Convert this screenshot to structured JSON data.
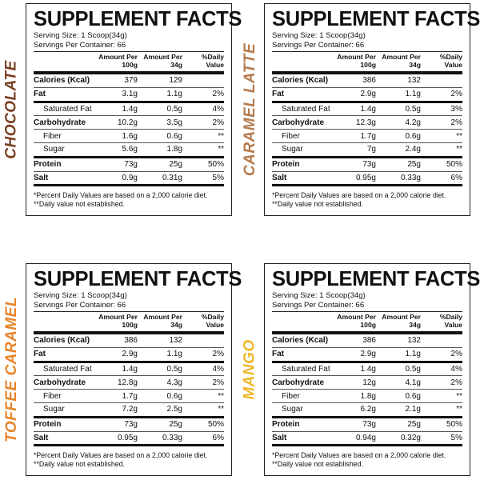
{
  "common": {
    "title": "SUPPLEMENT FACTS",
    "serving_size": "Serving Size: 1 Scoop(34g)",
    "servings_per_container": "Servings Per Container: 66",
    "headers": {
      "per100": "Amount Per 100g",
      "per34": "Amount Per 34g",
      "dv": "%Daily Value"
    },
    "footnote1": "*Percent Daily Values are based on a 2,000 calorie diet.",
    "footnote2": "**Daily value not established."
  },
  "panels": [
    {
      "flavor": "CHOCOLATE",
      "flavor_color": "#7a3f22",
      "rows": [
        {
          "label": "Calories (Kcal)",
          "per100": "379",
          "per34": "129",
          "dv": ""
        },
        {
          "label": "Fat",
          "per100": "3.1g",
          "per34": "1.1g",
          "dv": "2%"
        },
        {
          "label": "Saturated Fat",
          "per100": "1.4g",
          "per34": "0.5g",
          "dv": "4%"
        },
        {
          "label": "Carbohydrate",
          "per100": "10.2g",
          "per34": "3.5g",
          "dv": "2%"
        },
        {
          "label": "Fiber",
          "per100": "1.6g",
          "per34": "0.6g",
          "dv": "**"
        },
        {
          "label": "Sugar",
          "per100": "5.6g",
          "per34": "1.8g",
          "dv": "**"
        },
        {
          "label": "Protein",
          "per100": "73g",
          "per34": "25g",
          "dv": "50%"
        },
        {
          "label": "Salt",
          "per100": "0.9g",
          "per34": "0.31g",
          "dv": "5%"
        }
      ]
    },
    {
      "flavor": "CARAMEL LATTE",
      "flavor_color": "#b57a4c",
      "rows": [
        {
          "label": "Calories (Kcal)",
          "per100": "386",
          "per34": "132",
          "dv": ""
        },
        {
          "label": "Fat",
          "per100": "2.9g",
          "per34": "1.1g",
          "dv": "2%"
        },
        {
          "label": "Saturated Fat",
          "per100": "1.4g",
          "per34": "0.5g",
          "dv": "3%"
        },
        {
          "label": "Carbohydrate",
          "per100": "12.3g",
          "per34": "4.2g",
          "dv": "2%"
        },
        {
          "label": "Fiber",
          "per100": "1.7g",
          "per34": "0.6g",
          "dv": "**"
        },
        {
          "label": "Sugar",
          "per100": "7g",
          "per34": "2.4g",
          "dv": "**"
        },
        {
          "label": "Protein",
          "per100": "73g",
          "per34": "25g",
          "dv": "50%"
        },
        {
          "label": "Salt",
          "per100": "0.95g",
          "per34": "0.33g",
          "dv": "6%"
        }
      ]
    },
    {
      "flavor": "TOFFEE CARAMEL",
      "flavor_color": "#e8842a",
      "rows": [
        {
          "label": "Calories (Kcal)",
          "per100": "386",
          "per34": "132",
          "dv": ""
        },
        {
          "label": "Fat",
          "per100": "2.9g",
          "per34": "1.1g",
          "dv": "2%"
        },
        {
          "label": "Saturated Fat",
          "per100": "1.4g",
          "per34": "0.5g",
          "dv": "4%"
        },
        {
          "label": "Carbohydrate",
          "per100": "12.8g",
          "per34": "4.3g",
          "dv": "2%"
        },
        {
          "label": "Fiber",
          "per100": "1.7g",
          "per34": "0.6g",
          "dv": "**"
        },
        {
          "label": "Sugar",
          "per100": "7.2g",
          "per34": "2.5g",
          "dv": "**"
        },
        {
          "label": "Protein",
          "per100": "73g",
          "per34": "25g",
          "dv": "50%"
        },
        {
          "label": "Salt",
          "per100": "0.95g",
          "per34": "0.33g",
          "dv": "6%"
        }
      ]
    },
    {
      "flavor": "MANGO",
      "flavor_color": "#f0b726",
      "rows": [
        {
          "label": "Calories (Kcal)",
          "per100": "386",
          "per34": "132",
          "dv": ""
        },
        {
          "label": "Fat",
          "per100": "2.9g",
          "per34": "1.1g",
          "dv": "2%"
        },
        {
          "label": "Saturated Fat",
          "per100": "1.4g",
          "per34": "0.5g",
          "dv": "4%"
        },
        {
          "label": "Carbohydrate",
          "per100": "12g",
          "per34": "4.1g",
          "dv": "2%"
        },
        {
          "label": "Fiber",
          "per100": "1.8g",
          "per34": "0.6g",
          "dv": "**"
        },
        {
          "label": "Sugar",
          "per100": "6.2g",
          "per34": "2.1g",
          "dv": "**"
        },
        {
          "label": "Protein",
          "per100": "73g",
          "per34": "25g",
          "dv": "50%"
        },
        {
          "label": "Salt",
          "per100": "0.94g",
          "per34": "0.32g",
          "dv": "5%"
        }
      ]
    }
  ]
}
